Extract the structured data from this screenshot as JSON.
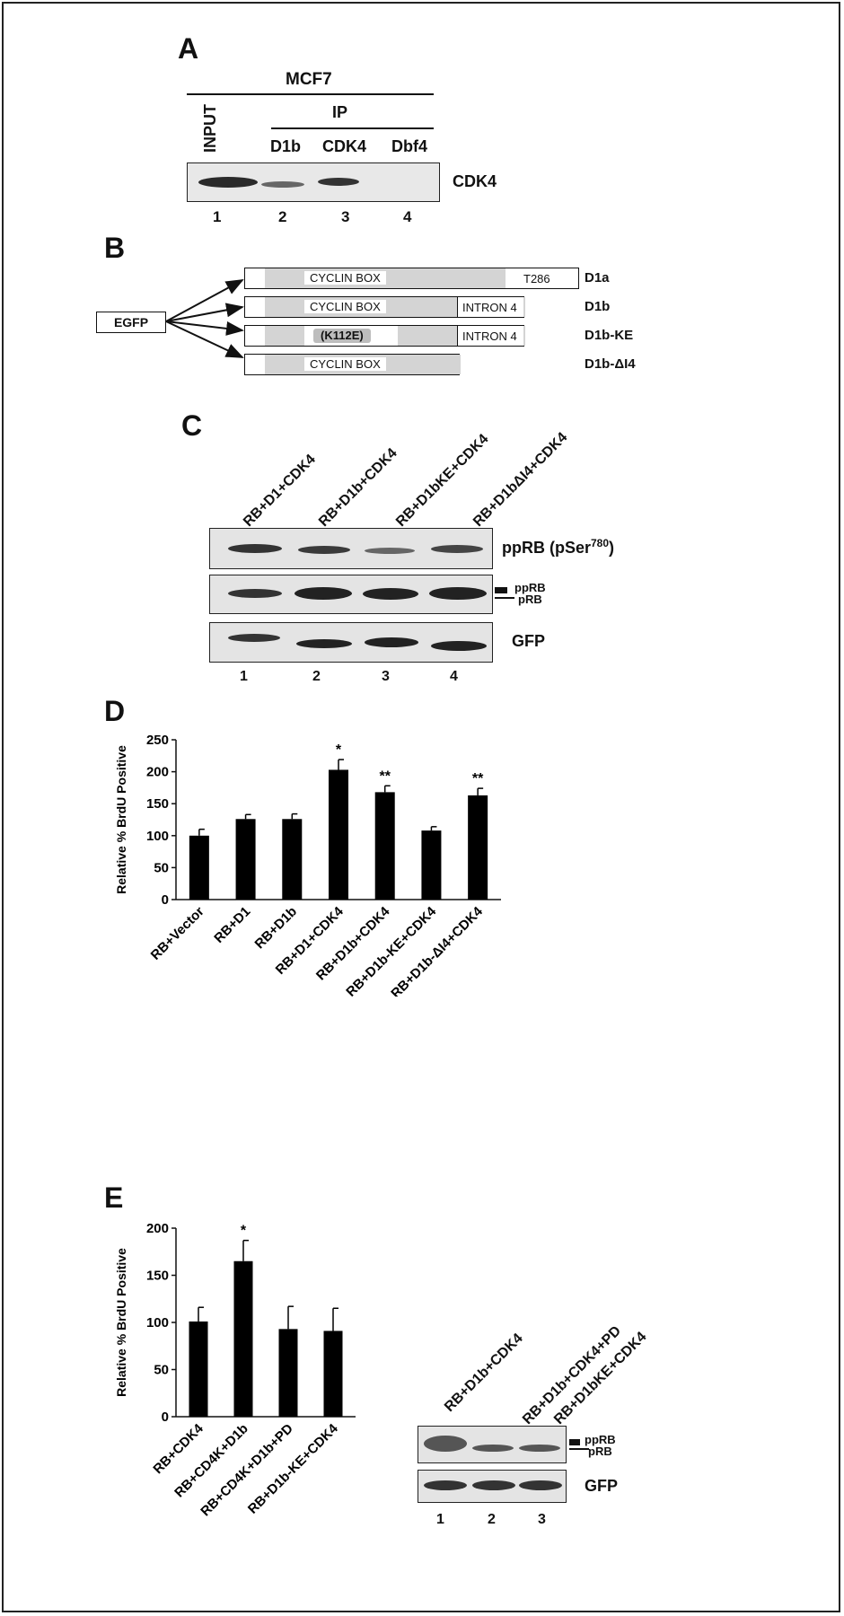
{
  "panelA": {
    "label": "A",
    "cell_line": "MCF7",
    "input_label": "INPUT",
    "ip_label": "IP",
    "lanes": [
      "D1b",
      "CDK4",
      "Dbf4"
    ],
    "blot_label": "CDK4",
    "lane_numbers": [
      "1",
      "2",
      "3",
      "4"
    ]
  },
  "panelB": {
    "label": "B",
    "egfp": "EGFP",
    "constructs": [
      {
        "name": "D1a",
        "box_text": "CYCLIN BOX",
        "end_text": "T286"
      },
      {
        "name": "D1b",
        "box_text": "CYCLIN BOX",
        "end_text": "INTRON 4"
      },
      {
        "name": "D1b-KE",
        "box_text": "(K112E)",
        "end_text": "INTRON 4"
      },
      {
        "name": "D1b-ΔI4",
        "box_text": "CYCLIN BOX",
        "end_text": ""
      }
    ]
  },
  "panelC": {
    "label": "C",
    "lanes": [
      "RB+D1+CDK4",
      "RB+D1b+CDK4",
      "RB+D1bKE+CDK4",
      "RB+D1bΔI4+CDK4"
    ],
    "blot1_label": "ppRB (pSer",
    "blot1_sup": "780",
    "blot1_close": ")",
    "blot2_pprb": "ppRB",
    "blot2_prb": "pRB",
    "blot3_label": "GFP",
    "lane_numbers": [
      "1",
      "2",
      "3",
      "4"
    ]
  },
  "panelD": {
    "label": "D",
    "chart_data": {
      "type": "bar",
      "ylabel": "Relative % BrdU Positive",
      "ylim": [
        0,
        250
      ],
      "yticks": [
        0,
        50,
        100,
        150,
        200,
        250
      ],
      "categories": [
        "RB+Vector",
        "RB+D1",
        "RB+D1b",
        "RB+D1+CDK4",
        "RB+D1b+CDK4",
        "RB+D1b-KE+CDK4",
        "RB+D1b-ΔI4+CDK4"
      ],
      "values": [
        100,
        126,
        126,
        203,
        168,
        108,
        163
      ],
      "errors": [
        10,
        7,
        8,
        16,
        10,
        6,
        11
      ],
      "annotations": [
        "",
        "",
        "",
        "*",
        "**",
        "",
        "**"
      ]
    }
  },
  "panelE": {
    "label": "E",
    "chart_data": {
      "type": "bar",
      "ylabel": "Relative % BrdU Positive",
      "ylim": [
        0,
        200
      ],
      "yticks": [
        0,
        50,
        100,
        150,
        200
      ],
      "categories": [
        "RB+CDK4",
        "RB+CD4K+D1b",
        "RB+CD4K+D1b+PD",
        "RB+D1b-KE+CDK4"
      ],
      "values": [
        101,
        165,
        93,
        91
      ],
      "errors": [
        15,
        22,
        24,
        24
      ],
      "annotations": [
        "",
        "*",
        "",
        ""
      ]
    },
    "blot_lanes": [
      "RB+D1b+CDK4",
      "RB+D1b+CDK4+PD",
      "RB+D1bKE+CDK4"
    ],
    "blot_pprb": "ppRB",
    "blot_prb": "pRB",
    "blot_gfp": "GFP",
    "lane_numbers": [
      "1",
      "2",
      "3"
    ]
  }
}
